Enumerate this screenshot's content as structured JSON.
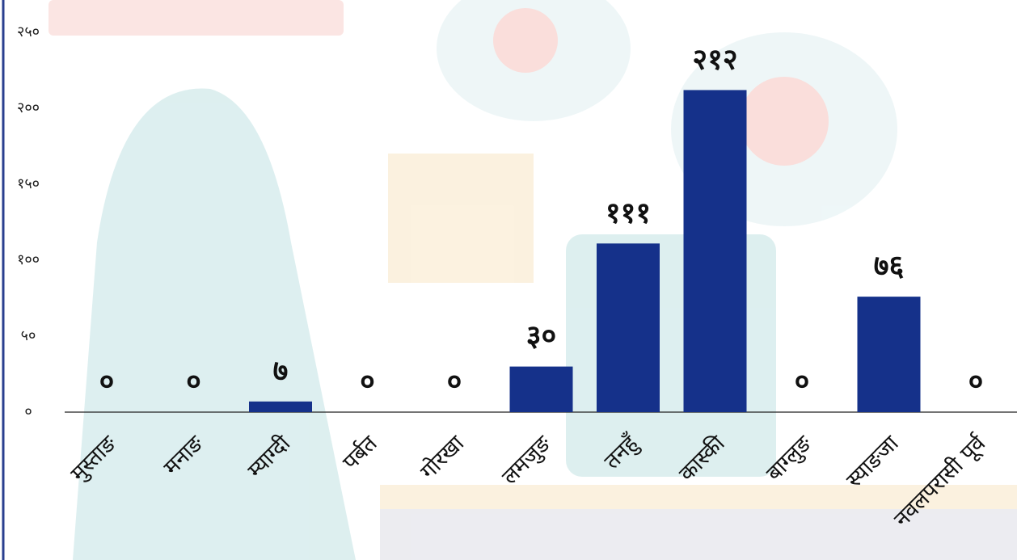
{
  "chart_data": {
    "type": "bar",
    "categories": [
      "मुस्ताङ",
      "मनाङ",
      "म्याग्दी",
      "पर्बत",
      "गोरखा",
      "लमजुङ",
      "तनहुँ",
      "कास्की",
      "बाग्लुङ",
      "स्याङजा",
      "नवलपरासी पूर्व"
    ],
    "values": [
      0,
      0,
      7,
      0,
      0,
      30,
      111,
      212,
      0,
      76,
      0
    ],
    "value_labels": [
      "०",
      "०",
      "७",
      "०",
      "०",
      "३०",
      "१११",
      "२१२",
      "०",
      "७६",
      "०"
    ],
    "color": "#15318a",
    "ylim": [
      0,
      250
    ],
    "yticks": [
      {
        "value": 0,
        "label": "०"
      },
      {
        "value": 50,
        "label": "५०"
      },
      {
        "value": 100,
        "label": "१००"
      },
      {
        "value": 150,
        "label": "१५०"
      },
      {
        "value": 200,
        "label": "२००"
      },
      {
        "value": 250,
        "label": "२५०"
      }
    ]
  }
}
